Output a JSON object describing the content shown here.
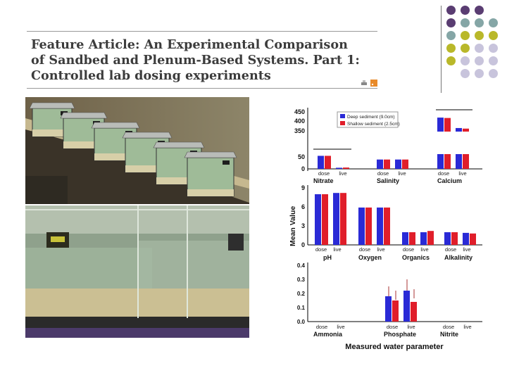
{
  "banner": {
    "title_lines": [
      "Feature Article: An Experimental Comparison",
      "of Sandbed and Plenum-Based Systems. Part 1:",
      "Controlled lab dosing experiments"
    ]
  },
  "decor": {
    "colors": {
      "purple": "#5a3d72",
      "teal": "#85a6a6",
      "olive": "#b9b82a",
      "lavender": "#c8c4dc"
    }
  },
  "photos": {
    "top": {
      "description_icon": "aquarium-tanks-on-bench-photo"
    },
    "bottom": {
      "description_icon": "glass-tanks-closeup-photo"
    }
  },
  "chart_data": [
    {
      "type": "bar",
      "panel": "top-row",
      "legend": [
        "Deep sediment (9.0cm)",
        "Shallow sediment (2.5cm)"
      ],
      "groups": [
        "Nitrate",
        "Salinity",
        "Calcium"
      ],
      "categories": [
        "dose",
        "live"
      ],
      "series": [
        {
          "name": "Deep sediment (9.0cm)",
          "values": {
            "Nitrate": [
              58,
              5
            ],
            "Salinity": [
              35,
              35
            ],
            "Calcium": [
              420,
              365
            ]
          }
        },
        {
          "name": "Shallow sediment (2.5cm)",
          "values": {
            "Nitrate": [
              58,
              6
            ],
            "Salinity": [
              35,
              35
            ],
            "Calcium": [
              418,
              362
            ]
          }
        }
      ],
      "yticks": [
        "450",
        "400",
        "350",
        "50",
        "0"
      ]
    },
    {
      "type": "bar",
      "panel": "middle-row",
      "ylabel": "Mean Value",
      "groups": [
        "pH",
        "Oxygen",
        "Organics",
        "Alkalinity"
      ],
      "categories": [
        "dose",
        "live"
      ],
      "series": [
        {
          "name": "Deep sediment (9.0cm)",
          "values": {
            "pH": [
              8.0,
              8.2
            ],
            "Oxygen": [
              5.9,
              5.9
            ],
            "Organics": [
              2.0,
              2.0
            ],
            "Alkalinity": [
              2.0,
              1.9
            ]
          }
        },
        {
          "name": "Shallow sediment (2.5cm)",
          "values": {
            "pH": [
              8.0,
              8.2
            ],
            "Oxygen": [
              5.9,
              5.9
            ],
            "Organics": [
              2.0,
              2.2
            ],
            "Alkalinity": [
              2.0,
              1.8
            ]
          }
        }
      ],
      "yticks": [
        "9",
        "6",
        "3",
        "0"
      ]
    },
    {
      "type": "bar",
      "panel": "bottom-row",
      "xlabel": "Measured water parameter",
      "groups": [
        "Ammonia",
        "Phosphate",
        "Nitrite"
      ],
      "categories": [
        "dose",
        "live"
      ],
      "series": [
        {
          "name": "Deep sediment (9.0cm)",
          "values": {
            "Ammonia": [
              0,
              0
            ],
            "Phosphate": [
              0.18,
              0.22
            ],
            "Nitrite": [
              0,
              0
            ]
          }
        },
        {
          "name": "Shallow sediment (2.5cm)",
          "values": {
            "Ammonia": [
              0,
              0
            ],
            "Phosphate": [
              0.15,
              0.14
            ],
            "Nitrite": [
              0,
              0
            ]
          }
        }
      ],
      "yticks": [
        "0.4",
        "0.3",
        "0.2",
        "0.1",
        "0.0"
      ]
    }
  ]
}
